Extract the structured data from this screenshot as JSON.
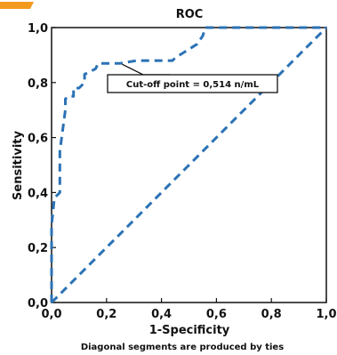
{
  "accent_color": "#f39a1e",
  "chart_data": {
    "type": "line",
    "title": "ROC",
    "xlabel": "1-Specificity",
    "ylabel": "Sensitivity",
    "footnote": "Diagonal segments are produced by ties",
    "xlim": [
      0,
      1
    ],
    "ylim": [
      0,
      1
    ],
    "x_ticks": [
      0,
      0.2,
      0.4,
      0.6,
      0.8,
      1.0
    ],
    "y_ticks": [
      0,
      0.2,
      0.4,
      0.6,
      0.8,
      1.0
    ],
    "x_tick_labels": [
      "0,0",
      "0,2",
      "0,4",
      "0,6",
      "0,8",
      "1,0"
    ],
    "y_tick_labels": [
      "0,0",
      "0,2",
      "0,4",
      "0,6",
      "0,8",
      "1,0"
    ],
    "grid": false,
    "series": [
      {
        "style": "dashed",
        "color": "#2b72b5",
        "x": [
          0,
          0,
          0.01,
          0.03,
          0.03,
          0.05,
          0.05,
          0.06,
          0.08,
          0.08,
          0.1,
          0.12,
          0.12,
          0.16,
          0.17,
          0.18,
          0.25,
          0.31,
          0.44,
          0.45,
          0.53,
          0.55,
          0.56,
          1.0
        ],
        "y": [
          0,
          0.28,
          0.38,
          0.4,
          0.55,
          0.7,
          0.74,
          0.75,
          0.75,
          0.78,
          0.78,
          0.8,
          0.83,
          0.85,
          0.87,
          0.87,
          0.87,
          0.88,
          0.88,
          0.89,
          0.94,
          0.97,
          1.0,
          1.0
        ]
      },
      {
        "style": "dashed",
        "color": "#2b72b5",
        "x": [
          0,
          1
        ],
        "y": [
          0,
          1
        ]
      }
    ],
    "annotations": [
      {
        "text": "Cut-off point = 0,514 n/mL",
        "x": 0.25,
        "y": 0.87
      }
    ]
  }
}
